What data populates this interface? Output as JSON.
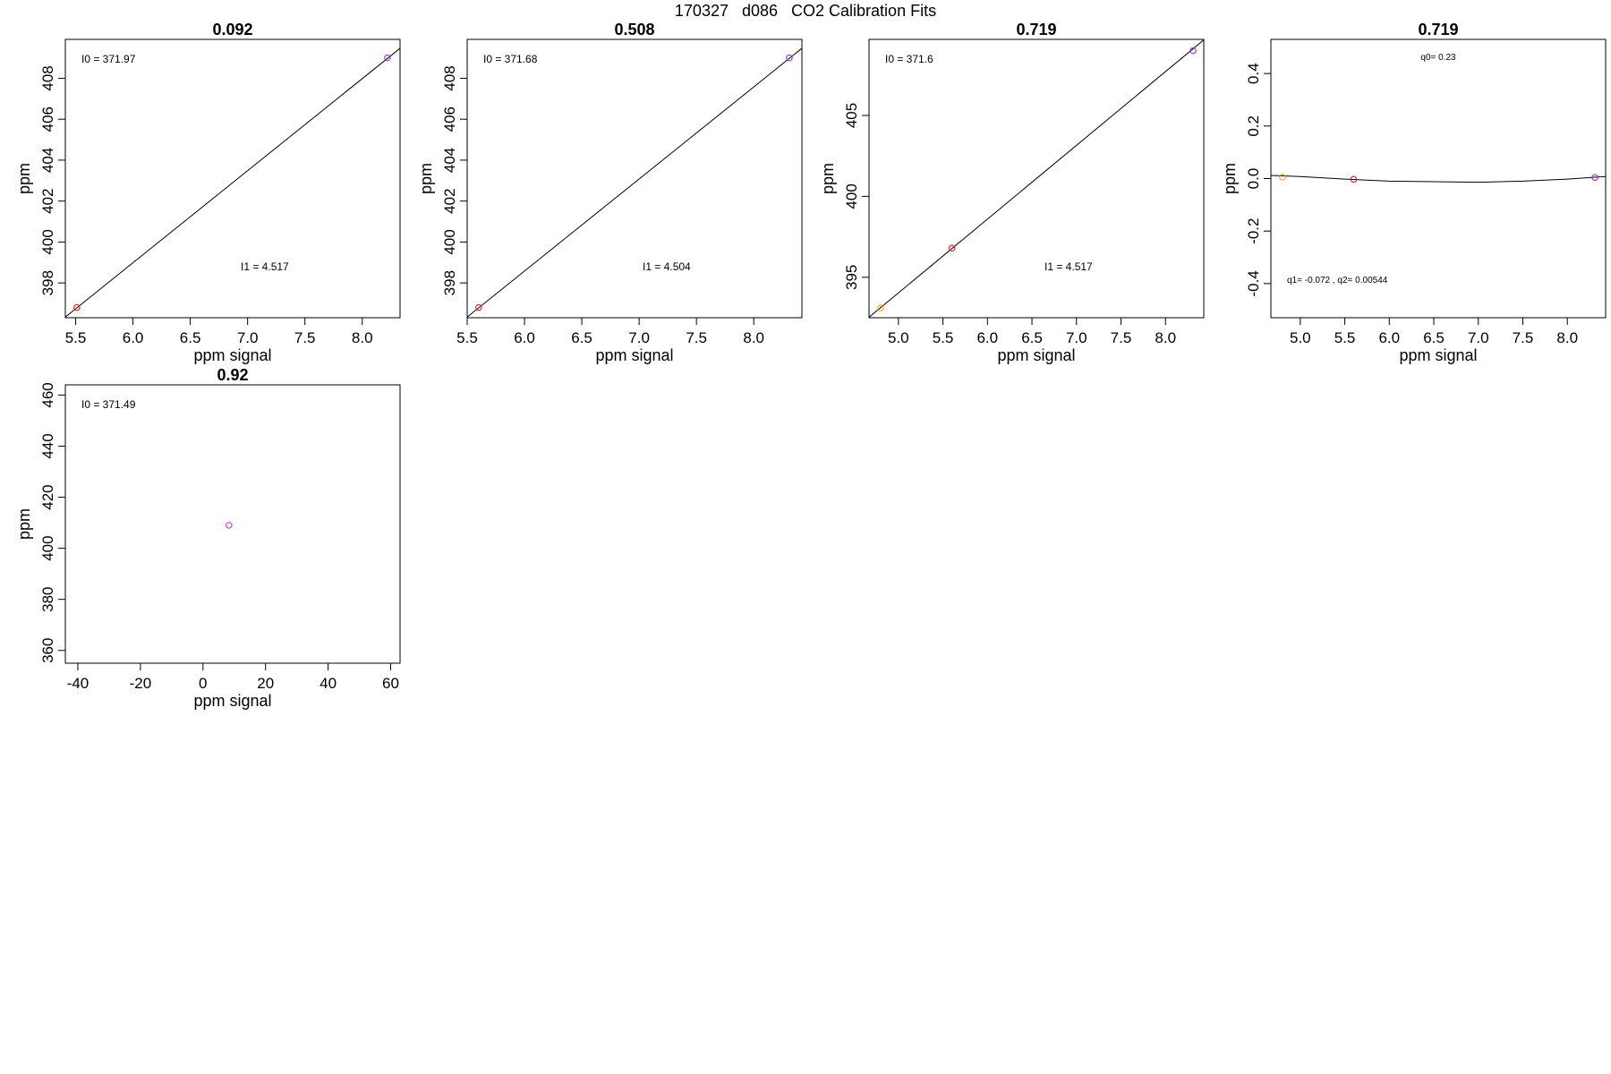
{
  "page": {
    "title": "170327   d086   CO2 Calibration Fits"
  },
  "chart_data": [
    {
      "type": "scatter",
      "title": "0.092",
      "xlabel": "ppm signal",
      "ylabel": "ppm",
      "xlim": [
        5.41,
        8.33
      ],
      "ylim": [
        396.3,
        409.9
      ],
      "xticks": [
        5.5,
        6.0,
        6.5,
        7.0,
        7.5,
        8.0
      ],
      "xtick_labels": [
        "5.5",
        "6.0",
        "6.5",
        "7.0",
        "7.5",
        "8.0"
      ],
      "yticks": [
        398,
        400,
        402,
        404,
        406,
        408
      ],
      "ytick_labels": [
        "398",
        "400",
        "402",
        "404",
        "406",
        "408"
      ],
      "points": [
        {
          "x": 5.51,
          "y": 396.8,
          "color": "#e8171d"
        },
        {
          "x": 8.22,
          "y": 409.0,
          "color": "#9a2bdf"
        }
      ],
      "line": {
        "x": [
          5.38,
          8.36
        ],
        "y": [
          396.2,
          409.6
        ]
      },
      "annotations": [
        {
          "text": "I0 =  371.97",
          "pos": "top-left"
        },
        {
          "text": "I1 =  4.517",
          "pos": "lower-center"
        }
      ]
    },
    {
      "type": "scatter",
      "title": "0.508",
      "xlabel": "ppm signal",
      "ylabel": "ppm",
      "xlim": [
        5.5,
        8.42
      ],
      "ylim": [
        396.3,
        409.9
      ],
      "xticks": [
        5.5,
        6.0,
        6.5,
        7.0,
        7.5,
        8.0
      ],
      "xtick_labels": [
        "5.5",
        "6.0",
        "6.5",
        "7.0",
        "7.5",
        "8.0"
      ],
      "yticks": [
        398,
        400,
        402,
        404,
        406,
        408
      ],
      "ytick_labels": [
        "398",
        "400",
        "402",
        "404",
        "406",
        "408"
      ],
      "points": [
        {
          "x": 5.6,
          "y": 396.8,
          "color": "#e8171d"
        },
        {
          "x": 8.31,
          "y": 409.0,
          "color": "#9a2bdf"
        }
      ],
      "line": {
        "x": [
          5.47,
          8.45
        ],
        "y": [
          396.2,
          409.6
        ]
      },
      "annotations": [
        {
          "text": "I0 =  371.68",
          "pos": "top-left"
        },
        {
          "text": "I1 =  4.504",
          "pos": "lower-center"
        }
      ]
    },
    {
      "type": "scatter",
      "title": "0.719",
      "xlabel": "ppm signal",
      "ylabel": "ppm",
      "xlim": [
        4.67,
        8.43
      ],
      "ylim": [
        392.5,
        409.7
      ],
      "xticks": [
        5.0,
        5.5,
        6.0,
        6.5,
        7.0,
        7.5,
        8.0
      ],
      "xtick_labels": [
        "5.0",
        "5.5",
        "6.0",
        "6.5",
        "7.0",
        "7.5",
        "8.0"
      ],
      "yticks": [
        395,
        400,
        405
      ],
      "ytick_labels": [
        "395",
        "400",
        "405"
      ],
      "points": [
        {
          "x": 4.8,
          "y": 393.1,
          "color": "#f0a020"
        },
        {
          "x": 5.6,
          "y": 396.8,
          "color": "#e8171d"
        },
        {
          "x": 8.31,
          "y": 409.0,
          "color": "#9a2bdf"
        }
      ],
      "line": {
        "x": [
          4.62,
          8.48
        ],
        "y": [
          392.3,
          409.9
        ]
      },
      "annotations": [
        {
          "text": "I0 =  371.6",
          "pos": "top-left"
        },
        {
          "text": "I1 =  4.517",
          "pos": "lower-center"
        }
      ]
    },
    {
      "type": "scatter",
      "title": "0.719",
      "xlabel": "ppm signal",
      "ylabel": "ppm",
      "xlim": [
        4.67,
        8.43
      ],
      "ylim": [
        -0.53,
        0.53
      ],
      "xticks": [
        5.0,
        5.5,
        6.0,
        6.5,
        7.0,
        7.5,
        8.0
      ],
      "xtick_labels": [
        "5.0",
        "5.5",
        "6.0",
        "6.5",
        "7.0",
        "7.5",
        "8.0"
      ],
      "yticks": [
        -0.4,
        -0.2,
        0.0,
        0.2,
        0.4
      ],
      "ytick_labels": [
        "-0.4",
        "-0.2",
        "0.0",
        "0.2",
        "0.4"
      ],
      "points": [
        {
          "x": 4.8,
          "y": 0.005,
          "color": "#f0a020"
        },
        {
          "x": 5.6,
          "y": -0.003,
          "color": "#e8171d"
        },
        {
          "x": 8.31,
          "y": 0.004,
          "color": "#9a2bdf"
        }
      ],
      "line": {
        "x": [
          4.67,
          5.0,
          5.5,
          6.0,
          6.5,
          7.0,
          7.5,
          8.0,
          8.43
        ],
        "y": [
          0.012,
          0.008,
          -0.002,
          -0.01,
          -0.012,
          -0.014,
          -0.01,
          -0.002,
          0.008
        ]
      },
      "annotations": [
        {
          "text": "q0= 0.23",
          "pos": "top-center"
        },
        {
          "text": "q1= -0.072 , q2= 0.00544",
          "pos": "bottom-left"
        }
      ]
    },
    {
      "type": "scatter",
      "title": "0.92",
      "xlabel": "ppm signal",
      "ylabel": "ppm",
      "xlim": [
        -44,
        63
      ],
      "ylim": [
        355,
        464
      ],
      "xticks": [
        -40,
        -20,
        0,
        20,
        40,
        60
      ],
      "xtick_labels": [
        "-40",
        "-20",
        "0",
        "20",
        "40",
        "60"
      ],
      "yticks": [
        360,
        380,
        400,
        420,
        440,
        460
      ],
      "ytick_labels": [
        "360",
        "380",
        "400",
        "420",
        "440",
        "460"
      ],
      "points": [
        {
          "x": 8.3,
          "y": 409.0,
          "color": "#d23ee0"
        }
      ],
      "annotations": [
        {
          "text": "I0 =  371.49",
          "pos": "top-left"
        }
      ]
    }
  ]
}
